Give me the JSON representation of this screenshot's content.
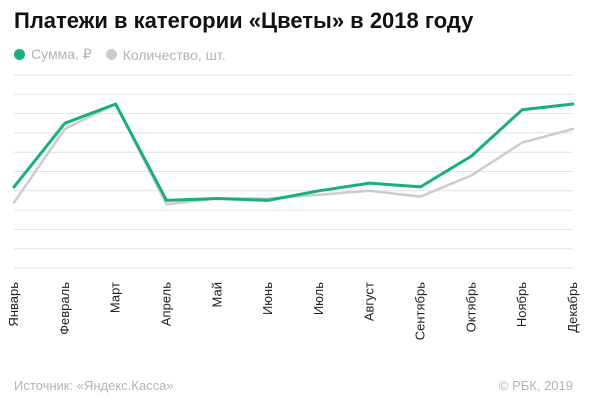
{
  "header": {
    "title": "Платежи в категории «Цветы» в 2018 году"
  },
  "legend": [
    {
      "label": "Сумма, ₽",
      "color": "#17b07d"
    },
    {
      "label": "Количество, шт.",
      "color": "#cccccc"
    }
  ],
  "footer": {
    "source": "Источник: «Яндекс.Касса»",
    "copyright": "© РБК, 2019"
  },
  "chart_data": {
    "type": "line",
    "title": "Платежи в категории «Цветы» в 2018 году",
    "categories": [
      "Январь",
      "Февраль",
      "Март",
      "Апрель",
      "Май",
      "Июнь",
      "Июль",
      "Август",
      "Сентябрь",
      "Октябрь",
      "Ноябрь",
      "Декабрь"
    ],
    "series": [
      {
        "name": "Сумма, ₽",
        "color": "#17b07d",
        "values": [
          4.2,
          7.5,
          8.5,
          3.5,
          3.6,
          3.5,
          4.0,
          4.4,
          4.2,
          5.8,
          8.2,
          8.5
        ]
      },
      {
        "name": "Количество, шт.",
        "color": "#cccccc",
        "values": [
          3.4,
          7.2,
          8.5,
          3.3,
          3.6,
          3.6,
          3.8,
          4.0,
          3.7,
          4.8,
          6.5,
          7.2
        ]
      }
    ],
    "ylim": [
      0,
      10
    ],
    "y_tick_labels": false,
    "grid": true,
    "legend_position": "top-left"
  }
}
